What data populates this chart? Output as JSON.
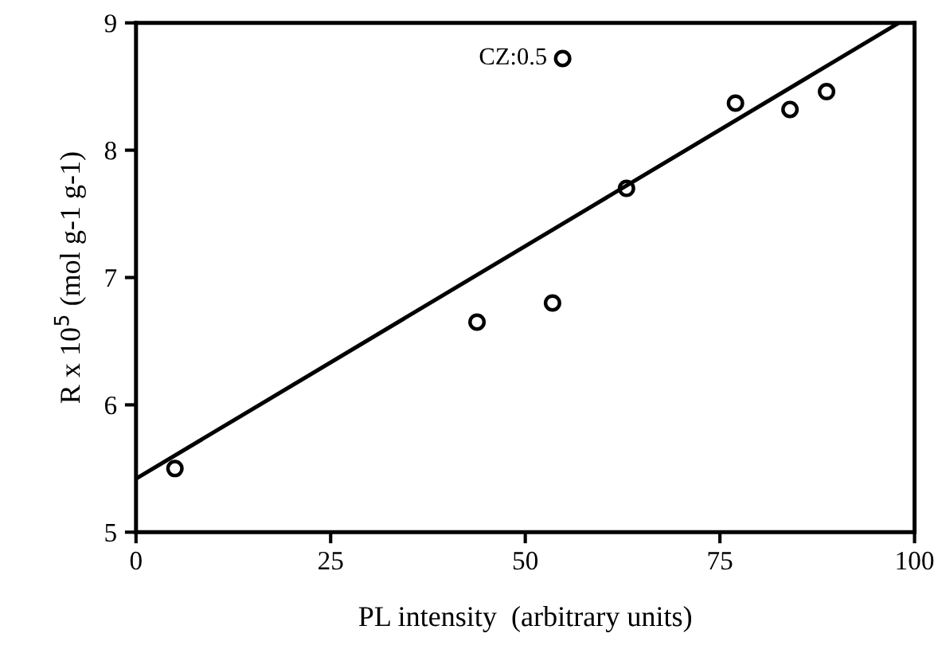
{
  "chart_data": {
    "type": "scatter",
    "xlabel": "PL intensity  (arbitrary units)",
    "ylabel": "R x 10$^{5}$ (mol g-1 g-1)",
    "series": [
      {
        "color": "#000000",
        "marker": "circle",
        "x": [
          5,
          43.8,
          53.5,
          54.8,
          63,
          77,
          84,
          88.7
        ],
        "values": [
          5.5,
          6.65,
          6.8,
          8.72,
          7.7,
          8.37,
          8.32,
          8.46
        ]
      },
      {
        "type": "line",
        "color": "#000000",
        "line_style": "solid",
        "x": [
          0,
          98
        ],
        "values": [
          5.42,
          9.0
        ]
      }
    ],
    "annotations": [
      {
        "text": "CZ:0.5",
        "x": 54.8,
        "y": 8.72
      }
    ],
    "xlim": [
      0,
      100
    ],
    "ylim": [
      5,
      9
    ],
    "xticks": [
      0,
      25,
      50,
      75,
      100
    ],
    "yticks": [
      5,
      6,
      7,
      8,
      9
    ],
    "grid": false,
    "legend": false
  }
}
